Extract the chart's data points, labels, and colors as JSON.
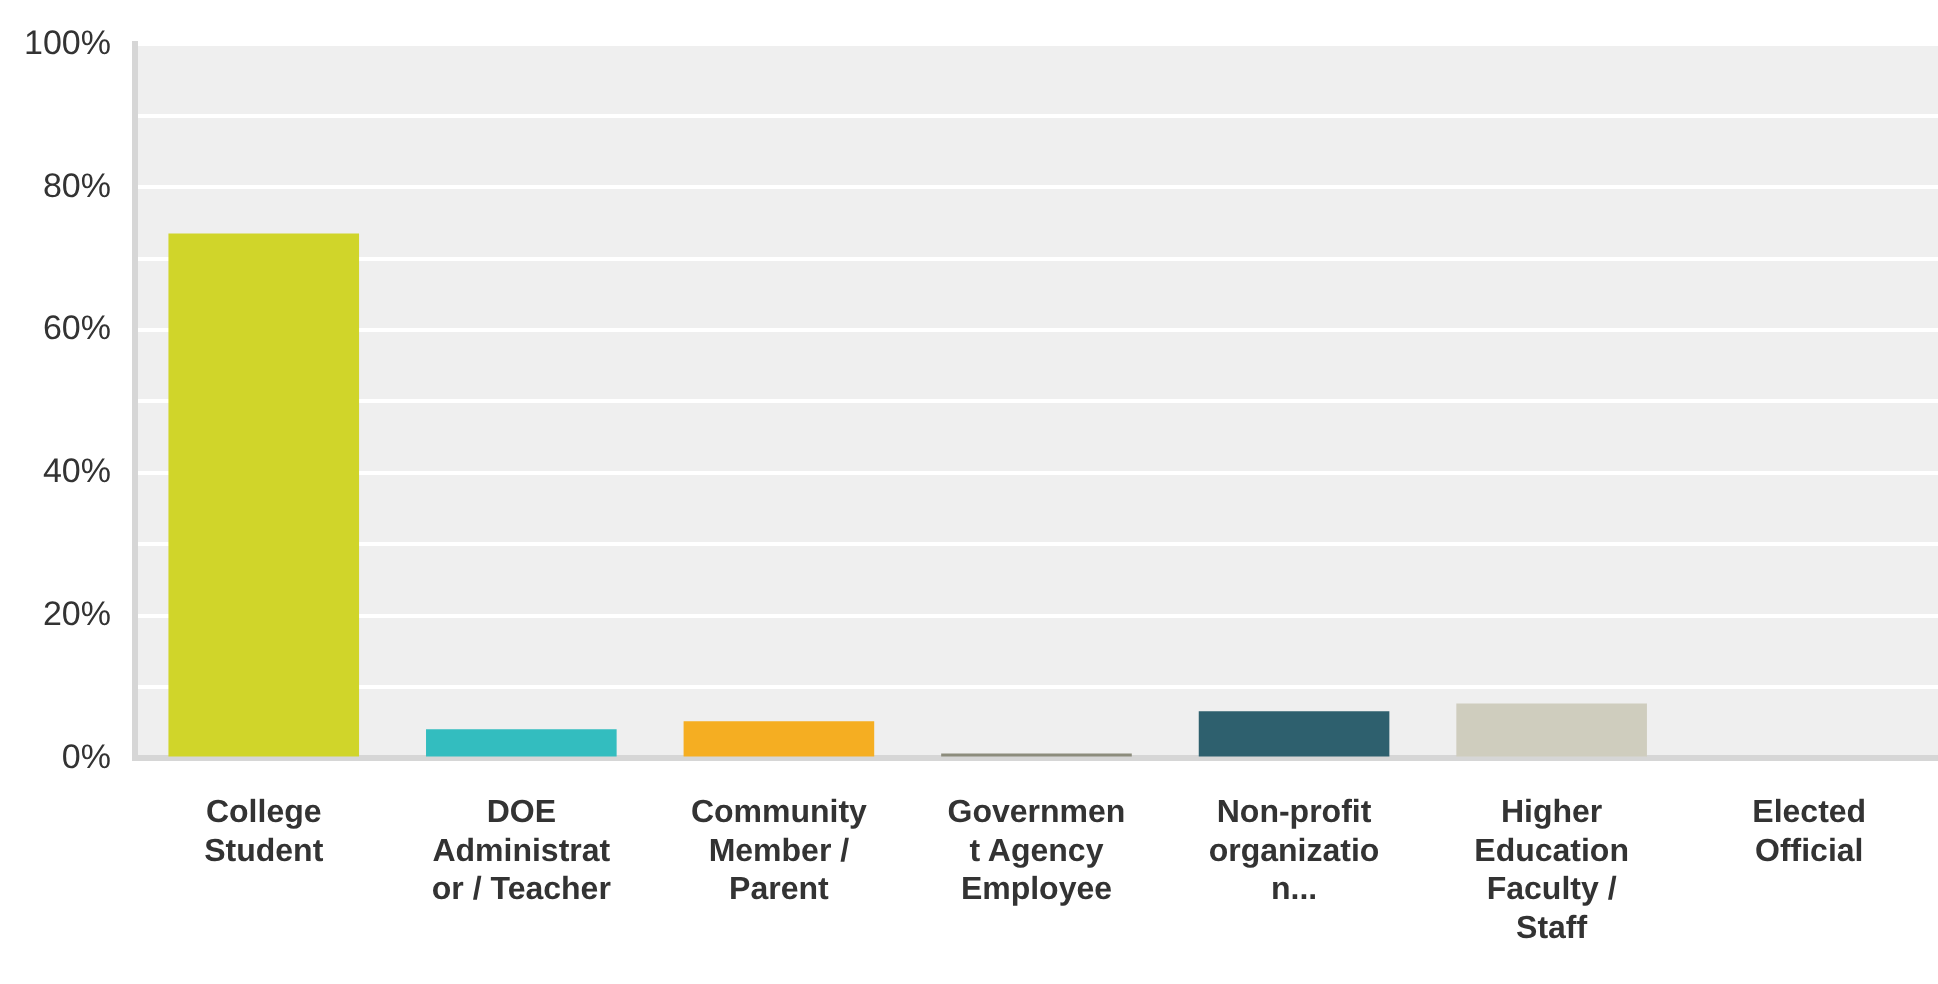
{
  "chart_data": {
    "type": "bar",
    "categories": [
      "College Student",
      "DOE Administrator / Teacher",
      "Community Member / Parent",
      "Government Agency Employee",
      "Non-profit organization...",
      "Higher Education Faculty / Staff",
      "Elected Official"
    ],
    "values": [
      73.5,
      4.1,
      5.2,
      0.7,
      6.6,
      7.7,
      0
    ],
    "colors": [
      "#d0d52a",
      "#33bdbf",
      "#f5ae22",
      "#8c8c7c",
      "#2e606e",
      "#cfcdbe",
      "#8fb0c8"
    ],
    "ylim": [
      0,
      100
    ],
    "yticks": [
      {
        "value": 0,
        "label": "0%"
      },
      {
        "value": 10,
        "label": null
      },
      {
        "value": 20,
        "label": "20%"
      },
      {
        "value": 30,
        "label": null
      },
      {
        "value": 40,
        "label": "40%"
      },
      {
        "value": 50,
        "label": null
      },
      {
        "value": 60,
        "label": "60%"
      },
      {
        "value": 70,
        "label": null
      },
      {
        "value": 80,
        "label": "80%"
      },
      {
        "value": 90,
        "label": null
      },
      {
        "value": 100,
        "label": "100%"
      }
    ],
    "grid": "y",
    "legend": false
  }
}
